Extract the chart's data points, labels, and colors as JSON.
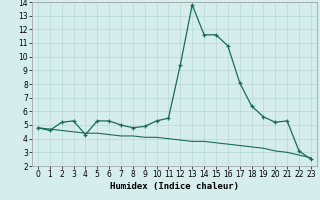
{
  "title": "",
  "xlabel": "Humidex (Indice chaleur)",
  "ylabel": "",
  "background_color": "#d5eeeb",
  "grid_color": "#b8d8d4",
  "line_color": "#1a6b5a",
  "xlim": [
    -0.5,
    23.5
  ],
  "ylim": [
    2,
    14
  ],
  "yticks": [
    2,
    3,
    4,
    5,
    6,
    7,
    8,
    9,
    10,
    11,
    12,
    13,
    14
  ],
  "xticks": [
    0,
    1,
    2,
    3,
    4,
    5,
    6,
    7,
    8,
    9,
    10,
    11,
    12,
    13,
    14,
    15,
    16,
    17,
    18,
    19,
    20,
    21,
    22,
    23
  ],
  "series1_x": [
    0,
    1,
    2,
    3,
    4,
    5,
    6,
    7,
    8,
    9,
    10,
    11,
    12,
    13,
    14,
    15,
    16,
    17,
    18,
    19,
    20,
    21,
    22,
    23
  ],
  "series1_y": [
    4.8,
    4.6,
    5.2,
    5.3,
    4.3,
    5.3,
    5.3,
    5.0,
    4.8,
    4.9,
    5.3,
    5.5,
    9.4,
    13.8,
    11.6,
    11.6,
    10.8,
    8.1,
    6.4,
    5.6,
    5.2,
    5.3,
    3.1,
    2.5
  ],
  "series2_x": [
    0,
    1,
    2,
    3,
    4,
    5,
    6,
    7,
    8,
    9,
    10,
    11,
    12,
    13,
    14,
    15,
    16,
    17,
    18,
    19,
    20,
    21,
    22,
    23
  ],
  "series2_y": [
    4.8,
    4.7,
    4.6,
    4.5,
    4.4,
    4.4,
    4.3,
    4.2,
    4.2,
    4.1,
    4.1,
    4.0,
    3.9,
    3.8,
    3.8,
    3.7,
    3.6,
    3.5,
    3.4,
    3.3,
    3.1,
    3.0,
    2.8,
    2.6
  ],
  "xlabel_fontsize": 6.5,
  "tick_fontsize": 5.5
}
